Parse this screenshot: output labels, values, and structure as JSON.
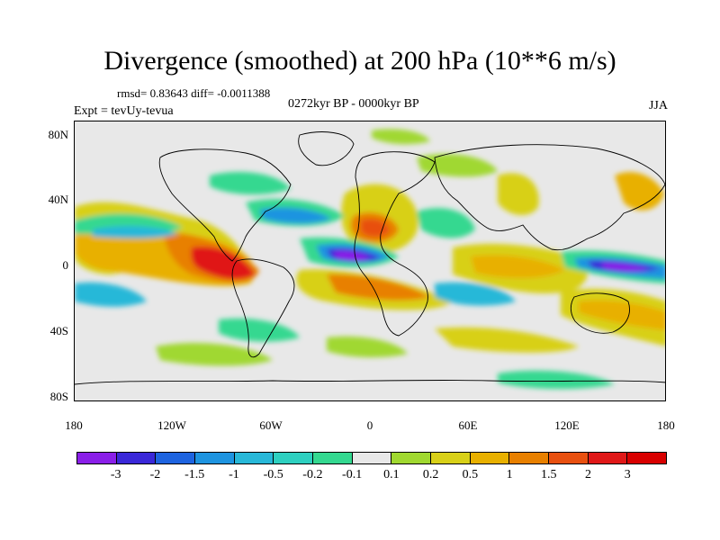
{
  "title": "Divergence (smoothed) at 200 hPa (10**6 m/s)",
  "stats": "rmsd= 0.83643 diff= -0.0011388",
  "period": "0272kyr BP - 0000kyr BP",
  "experiment": "Expt = tevUy-tevua",
  "season": "JJA",
  "map": {
    "lat_labels": [
      "80N",
      "40N",
      "0",
      "40S",
      "80S"
    ],
    "lon_labels": [
      "180",
      "120W",
      "60W",
      "0",
      "60E",
      "120E",
      "180"
    ],
    "background_color": "#e8e8e8"
  },
  "colorbar": {
    "labels": [
      "-3",
      "-2",
      "-1.5",
      "-1",
      "-0.5",
      "-0.2",
      "-0.1",
      "0.1",
      "0.2",
      "0.5",
      "1",
      "1.5",
      "2",
      "3"
    ],
    "colors": [
      "#8a1fe8",
      "#3a28d8",
      "#1e64e0",
      "#1e94e0",
      "#28b8d8",
      "#2ed0c0",
      "#34d890",
      "#e8e8e8",
      "#a0d830",
      "#d8d018",
      "#e8b000",
      "#e88000",
      "#e85010",
      "#e01818",
      "#d80000"
    ]
  }
}
